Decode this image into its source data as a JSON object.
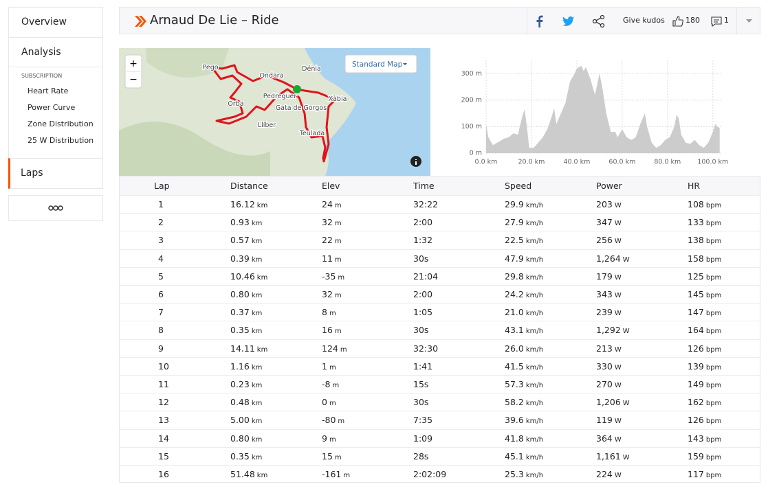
{
  "sidebar": {
    "items": [
      "Overview",
      "Analysis"
    ],
    "subscription": {
      "title": "SUBSCRIPTION",
      "items": [
        "Heart Rate",
        "Power Curve",
        "Zone Distribution",
        "25 W Distribution"
      ]
    },
    "active": "Laps"
  },
  "header": {
    "title": "Arnaud De Lie – Ride",
    "kudos_button": "Give kudos",
    "kudos_count": "180",
    "comment_count": "1"
  },
  "map": {
    "zoom_in": "+",
    "zoom_out": "−",
    "map_style": "Standard Map",
    "places": [
      {
        "label": "Pego"
      },
      {
        "label": "Ondara"
      },
      {
        "label": "Dénia"
      },
      {
        "label": "Pedreguer"
      },
      {
        "label": "Gata de Gorgos"
      },
      {
        "label": "Xàbia"
      },
      {
        "label": "Orba"
      },
      {
        "label": "Llíber"
      },
      {
        "label": "Teulada"
      }
    ]
  },
  "elevation_chart": {
    "type": "area",
    "color": "#cccccc",
    "grid": true,
    "x": [
      0,
      1,
      3,
      5,
      8,
      10,
      12,
      14,
      16,
      17,
      18,
      19,
      21,
      23,
      25,
      27,
      29,
      30,
      31,
      33,
      35,
      37,
      39,
      40,
      42,
      43,
      44,
      46,
      48,
      49,
      50,
      51,
      53,
      55,
      57,
      58,
      60,
      62,
      64,
      66,
      68,
      70,
      71,
      73,
      75,
      77,
      79,
      81,
      83,
      84,
      85,
      86,
      88,
      90,
      92,
      94,
      96,
      98,
      100,
      101,
      102,
      103
    ],
    "values": [
      110,
      60,
      30,
      40,
      55,
      60,
      75,
      70,
      140,
      165,
      100,
      20,
      20,
      40,
      60,
      90,
      140,
      170,
      110,
      150,
      190,
      270,
      300,
      320,
      330,
      310,
      325,
      280,
      220,
      260,
      300,
      260,
      150,
      80,
      80,
      60,
      90,
      60,
      50,
      60,
      110,
      150,
      100,
      40,
      20,
      30,
      50,
      60,
      100,
      145,
      130,
      70,
      40,
      35,
      50,
      30,
      20,
      40,
      80,
      110,
      100,
      95
    ],
    "xlim": [
      0,
      104
    ],
    "ylim": [
      0,
      350
    ],
    "xticks": [
      {
        "value": 0,
        "label": "0.0 km"
      },
      {
        "value": 20,
        "label": "20.0 km"
      },
      {
        "value": 40,
        "label": "40.0 km"
      },
      {
        "value": 60,
        "label": "60.0 km"
      },
      {
        "value": 80,
        "label": "80.0 km"
      },
      {
        "value": 100,
        "label": "100.0 km"
      }
    ],
    "yticks": [
      {
        "value": 0,
        "label": "0 m"
      },
      {
        "value": 100,
        "label": "100 m"
      },
      {
        "value": 200,
        "label": "200 m"
      },
      {
        "value": 300,
        "label": "300 m"
      }
    ]
  },
  "table": {
    "columns": [
      "Lap",
      "Distance",
      "Elev",
      "Time",
      "Speed",
      "Power",
      "HR"
    ],
    "units": [
      "",
      "km",
      "m",
      "",
      "km/h",
      "W",
      "bpm"
    ],
    "rows": [
      [
        "1",
        "16.12",
        "24",
        "32:22",
        "29.9",
        "203",
        "108"
      ],
      [
        "2",
        "0.93",
        "32",
        "2:00",
        "27.9",
        "347",
        "133"
      ],
      [
        "3",
        "0.57",
        "22",
        "1:32",
        "22.5",
        "256",
        "138"
      ],
      [
        "4",
        "0.39",
        "11",
        "30s",
        "47.9",
        "1,264",
        "158"
      ],
      [
        "5",
        "10.46",
        "-35",
        "21:04",
        "29.8",
        "179",
        "125"
      ],
      [
        "6",
        "0.80",
        "32",
        "2:00",
        "24.2",
        "343",
        "145"
      ],
      [
        "7",
        "0.37",
        "8",
        "1:05",
        "21.0",
        "239",
        "147"
      ],
      [
        "8",
        "0.35",
        "16",
        "30s",
        "43.1",
        "1,292",
        "164"
      ],
      [
        "9",
        "14.11",
        "124",
        "32:30",
        "26.0",
        "213",
        "126"
      ],
      [
        "10",
        "1.16",
        "1",
        "1:41",
        "41.5",
        "330",
        "139"
      ],
      [
        "11",
        "0.23",
        "-8",
        "15s",
        "57.3",
        "270",
        "149"
      ],
      [
        "12",
        "0.48",
        "0",
        "30s",
        "58.2",
        "1,206",
        "162"
      ],
      [
        "13",
        "5.00",
        "-80",
        "7:35",
        "39.6",
        "119",
        "126"
      ],
      [
        "14",
        "0.80",
        "9",
        "1:09",
        "41.8",
        "364",
        "143"
      ],
      [
        "15",
        "0.35",
        "15",
        "28s",
        "45.1",
        "1,161",
        "159"
      ],
      [
        "16",
        "51.48",
        "-161",
        "2:02:09",
        "25.3",
        "224",
        "117"
      ]
    ]
  }
}
